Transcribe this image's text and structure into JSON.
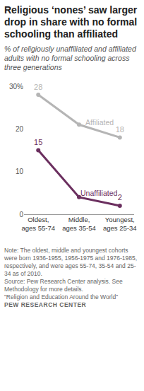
{
  "chart_data": {
    "type": "line",
    "title": "Religious ‘nones’ saw larger drop in share with no formal schooling than affiliated",
    "subtitle": "% of religiously unaffiliated and affiliated adults with no formal schooling across three generations",
    "categories": [
      "Oldest,\nages 55-74",
      "Middle,\nages 35-54",
      "Youngest,\nages 25-34"
    ],
    "series": [
      {
        "name": "Affiliated",
        "color": "#b5b5b5",
        "values": [
          28,
          21,
          18
        ],
        "value_labels": [
          "28",
          null,
          "18"
        ],
        "marker": "circle"
      },
      {
        "name": "Unaffiliated",
        "color": "#6b2f5f",
        "values": [
          15,
          4,
          2
        ],
        "value_labels": [
          "15",
          null,
          "2"
        ],
        "marker": "circle"
      }
    ],
    "ylim": [
      0,
      30
    ],
    "yticks": [
      0,
      10,
      20,
      {
        "value": 30,
        "label": "30%"
      }
    ],
    "grid": false,
    "data_labels": true,
    "notes": [
      "Note: The oldest, middle and youngest cohorts were born 1936-1955, 1956-1975 and 1976-1985, respectively, and were ages 55-74, 35-54 and 25-34 as of 2010.",
      "Source: Pew Research Center analysis. See Methodology for more details.",
      "“Religion and Education Around the World”",
      "PEW RESEARCH CENTER"
    ]
  }
}
